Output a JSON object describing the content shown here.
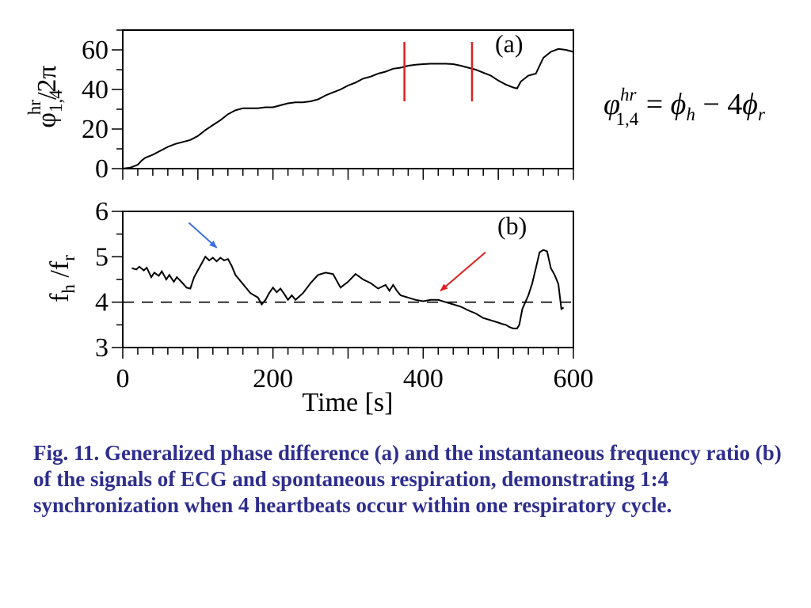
{
  "chart_data": [
    {
      "type": "line",
      "panel_label": "(a)",
      "ylabel_main": "φ",
      "ylabel_sub": "1,4",
      "ylabel_sup": "hr",
      "ylabel_tail": "/2π",
      "xlim": [
        0,
        600
      ],
      "ylim": [
        0,
        70
      ],
      "yticks": [
        0,
        20,
        40,
        60
      ],
      "series": [
        {
          "color": "#000000",
          "x": [
            0,
            10,
            20,
            25,
            30,
            40,
            50,
            60,
            70,
            80,
            90,
            100,
            110,
            120,
            130,
            140,
            150,
            160,
            170,
            180,
            190,
            200,
            210,
            220,
            230,
            240,
            250,
            260,
            270,
            280,
            290,
            300,
            310,
            320,
            330,
            340,
            350,
            360,
            370,
            380,
            390,
            400,
            410,
            420,
            430,
            440,
            450,
            460,
            470,
            480,
            490,
            500,
            510,
            520,
            525,
            530,
            540,
            550,
            555,
            560,
            570,
            580,
            590,
            600
          ],
          "y": [
            0,
            0.5,
            2,
            4,
            5.5,
            7,
            9,
            11,
            12.5,
            13.5,
            14.5,
            16.5,
            19.5,
            22,
            24.5,
            27.5,
            29.5,
            30.5,
            30.5,
            30.5,
            31,
            31,
            32,
            33,
            33.5,
            33.5,
            34,
            35,
            37,
            38.5,
            40,
            42,
            43.5,
            45.5,
            46.5,
            48,
            49,
            50.5,
            51,
            52,
            52.5,
            52.8,
            53,
            53,
            53,
            52.8,
            52,
            51,
            50,
            48.5,
            47,
            44.5,
            42.5,
            41,
            40.5,
            44,
            47,
            48,
            52,
            56,
            59,
            60.5,
            60,
            59
          ]
        }
      ],
      "markers": [
        {
          "x": 375,
          "y0": 34,
          "y1": 64,
          "color": "#e02020"
        },
        {
          "x": 465,
          "y0": 34,
          "y1": 64,
          "color": "#e02020"
        }
      ]
    },
    {
      "type": "line",
      "panel_label": "(b)",
      "ylabel_f1": "f",
      "ylabel_f1_sub": "h",
      "ylabel_slash": " /f",
      "ylabel_f2_sub": "r",
      "xlim": [
        0,
        600
      ],
      "ylim": [
        3,
        6
      ],
      "yticks": [
        3,
        4,
        5,
        6
      ],
      "xticks": [
        0,
        200,
        400,
        600
      ],
      "xlabel": "Time [s]",
      "reference_line": {
        "y": 4,
        "style": "dashed"
      },
      "series": [
        {
          "color": "#000000",
          "x": [
            12,
            18,
            22,
            28,
            32,
            38,
            42,
            48,
            52,
            58,
            62,
            68,
            72,
            78,
            85,
            90,
            95,
            100,
            105,
            110,
            115,
            120,
            125,
            130,
            135,
            140,
            145,
            150,
            160,
            170,
            180,
            185,
            190,
            195,
            200,
            205,
            210,
            215,
            220,
            225,
            230,
            240,
            250,
            260,
            270,
            280,
            290,
            300,
            310,
            320,
            330,
            340,
            350,
            355,
            360,
            365,
            370,
            380,
            390,
            400,
            410,
            420,
            430,
            440,
            450,
            460,
            470,
            480,
            490,
            500,
            505,
            510,
            515,
            520,
            525,
            528,
            532,
            540,
            545,
            550,
            555,
            560,
            565,
            570,
            575,
            580,
            584,
            587
          ],
          "y": [
            4.75,
            4.72,
            4.78,
            4.7,
            4.76,
            4.55,
            4.65,
            4.58,
            4.68,
            4.5,
            4.6,
            4.45,
            4.55,
            4.45,
            4.32,
            4.3,
            4.55,
            4.7,
            4.85,
            5.0,
            4.92,
            4.98,
            4.9,
            4.98,
            4.92,
            4.95,
            4.8,
            4.6,
            4.4,
            4.2,
            4.1,
            3.95,
            4.05,
            4.2,
            4.32,
            4.22,
            4.3,
            4.18,
            4.05,
            4.15,
            4.05,
            4.2,
            4.42,
            4.6,
            4.65,
            4.62,
            4.32,
            4.45,
            4.62,
            4.5,
            4.42,
            4.3,
            4.38,
            4.25,
            4.38,
            4.25,
            4.15,
            4.1,
            4.05,
            4.02,
            4.05,
            4.05,
            4.0,
            3.95,
            3.9,
            3.82,
            3.75,
            3.65,
            3.6,
            3.55,
            3.52,
            3.5,
            3.45,
            3.42,
            3.42,
            3.5,
            3.85,
            4.15,
            4.4,
            4.75,
            5.1,
            5.15,
            5.12,
            4.75,
            4.6,
            4.4,
            3.85,
            3.88
          ]
        }
      ],
      "arrows": [
        {
          "from": [
            88,
            5.75
          ],
          "to": [
            125,
            5.2
          ],
          "color": "#3a6fe0"
        },
        {
          "from": [
            483,
            5.1
          ],
          "to": [
            423,
            4.25
          ],
          "color": "#e02020"
        }
      ]
    }
  ],
  "formula": {
    "phi": "φ",
    "sup": "hr",
    "sub": "1,4",
    "eq": " = ",
    "rhs_phi1": "ϕ",
    "rhs_sub1": "h",
    "minus": " − 4",
    "rhs_phi2": "ϕ",
    "rhs_sub2": "r"
  },
  "caption": "Fig. 11. Generalized phase difference  (a) and the instantaneous frequency ratio (b) of the signals of ECG and spontaneous respiration, demonstrating 1:4 synchronization when 4 heartbeats occur within one respiratory cycle."
}
